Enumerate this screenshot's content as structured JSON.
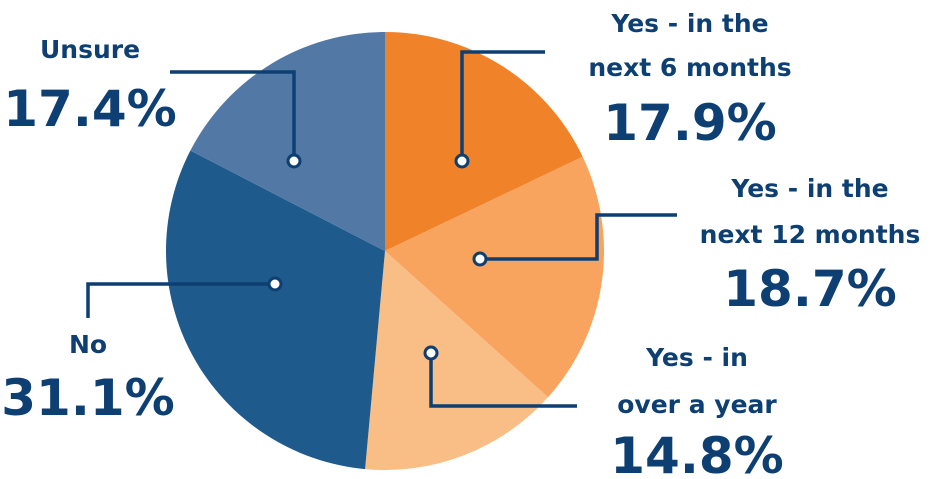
{
  "chart_data": {
    "type": "pie",
    "slices": [
      {
        "label_lines": [
          "Yes - in the",
          "next 6 months"
        ],
        "value": 17.9,
        "value_label": "17.9%",
        "color": "#f0822a"
      },
      {
        "label_lines": [
          "Yes - in the",
          "next 12 months"
        ],
        "value": 18.7,
        "value_label": "18.7%",
        "color": "#f8a45f"
      },
      {
        "label_lines": [
          "Yes - in",
          "over a year"
        ],
        "value": 14.8,
        "value_label": "14.8%",
        "color": "#f9bd86"
      },
      {
        "label_lines": [
          "No"
        ],
        "value": 31.1,
        "value_label": "31.1%",
        "color": "#1f5a8c"
      },
      {
        "label_lines": [
          "Unsure"
        ],
        "value": 17.4,
        "value_label": "17.4%",
        "color": "#5279a6"
      }
    ],
    "start_angle": "12 o'clock",
    "direction": "clockwise",
    "label_color": "#0d3f73",
    "legend": "none"
  }
}
